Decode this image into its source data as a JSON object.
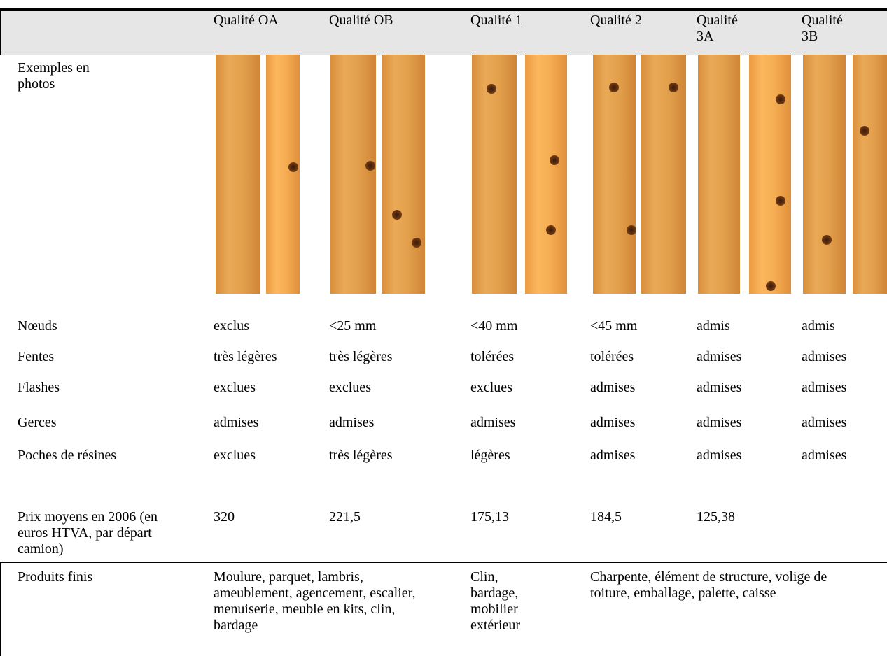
{
  "table": {
    "columns": [
      "Qualité OA",
      "Qualité OB",
      "Qualité 1",
      "Qualité 2",
      "Qualité 3A",
      "Qualité 3B"
    ],
    "photo_label": "Exemples en photos",
    "rows": [
      {
        "label": "Nœuds",
        "cells": [
          "exclus",
          "<25 mm",
          "<40 mm",
          "<45 mm",
          "admis",
          "admis"
        ]
      },
      {
        "label": "Fentes",
        "cells": [
          "très légères",
          "très légères",
          "tolérées",
          "tolérées",
          "admises",
          "admises"
        ]
      },
      {
        "label": "Flashes",
        "cells": [
          "exclues",
          "exclues",
          "exclues",
          "admises",
          "admises",
          "admises"
        ]
      },
      {
        "label": "Gerces",
        "cells": [
          "admises",
          "admises",
          "admises",
          "admises",
          "admises",
          "admises"
        ]
      },
      {
        "label": "Poches de résines",
        "cells": [
          "exclues",
          "très légères",
          "légères",
          "admises",
          "admises",
          "admises"
        ]
      },
      {
        "label": "Prix moyens en 2006 (en euros HTVA, par départ camion)",
        "cells": [
          "320",
          "221,5",
          "175,13",
          "184,5",
          "125,38"
        ]
      }
    ],
    "products": {
      "label": "Produits finis",
      "groups": [
        "Moulure, parquet, lambris, ameublement, agencement, escalier, menuiserie, meuble en kits, clin, bardage",
        "Clin, bardage, mobilier extérieur",
        "Charpente, élément de structure, volige de toiture, emballage, palette, caisse"
      ]
    }
  }
}
